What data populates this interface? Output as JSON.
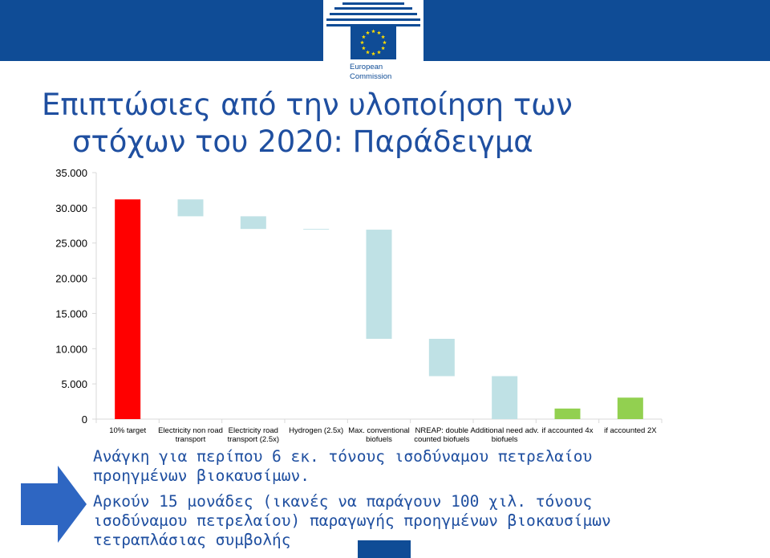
{
  "header": {
    "logo_line1": "European",
    "logo_line2": "Commission"
  },
  "title": {
    "line1": "Επιπτώσιες από την υλοποίηση των",
    "line2": "στόχων του 2020: Παράδειγμα"
  },
  "chart_data": {
    "type": "bar",
    "subtype": "waterfall",
    "ylim": [
      0,
      35000
    ],
    "yticks": [
      0,
      5000,
      10000,
      15000,
      20000,
      25000,
      30000,
      35000
    ],
    "ytick_labels": [
      "0",
      "5.000",
      "10.000",
      "15.000",
      "20.000",
      "25.000",
      "30.000",
      "35.000"
    ],
    "grid": false,
    "categories": [
      "10% target",
      "Electricity non road transport",
      "Electricity road transport (2.5x)",
      "Hydrogen (2.5x)",
      "Max.  conventional biofuels",
      "NREAP: double counted biofuels",
      "Additional need adv. biofuels",
      "if accounted 4x",
      "if accounted 2X"
    ],
    "bars": [
      {
        "low": 0,
        "high": 31200,
        "color": "#ff0000"
      },
      {
        "low": 28800,
        "high": 31200,
        "color": "#bfe1e5"
      },
      {
        "low": 27000,
        "high": 28800,
        "color": "#bfe1e5"
      },
      {
        "low": 26900,
        "high": 27000,
        "color": "#bfe1e5"
      },
      {
        "low": 11400,
        "high": 26900,
        "color": "#bfe1e5"
      },
      {
        "low": 6100,
        "high": 11400,
        "color": "#bfe1e5"
      },
      {
        "low": 0,
        "high": 6100,
        "color": "#bfe1e5"
      },
      {
        "low": 0,
        "high": 1500,
        "color": "#92d050"
      },
      {
        "low": 0,
        "high": 3050,
        "color": "#92d050"
      }
    ]
  },
  "notes": {
    "line1": "Ανάγκη για περίπου 6 εκ. τόνους ισοδύναμου πετρελαίου",
    "line2": "προηγμένων βιοκαυσίμων.",
    "line3": "Αρκούν 15 μονάδες (ικανές να παράγουν 100 χιλ. τόνους",
    "line4": "ισοδύναμου πετρελαίου) παραγωγής  προηγμένων βιοκαυσίμων",
    "line5": "τετραπλάσιας συμβολής"
  }
}
